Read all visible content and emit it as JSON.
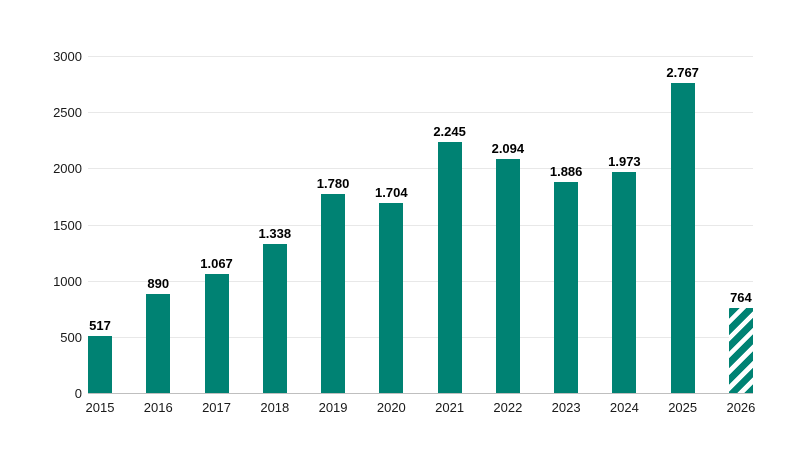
{
  "colors": {
    "bar": "#008273",
    "gridline": "#e8e8e8",
    "axis_line": "#bfbfbf",
    "text": "#1a1a1a",
    "background": "#ffffff"
  },
  "chart_data": {
    "type": "bar",
    "title": "",
    "xlabel": "",
    "ylabel": "",
    "legend": "none",
    "grid": "horizontal",
    "categories": [
      "2015",
      "2016",
      "2017",
      "2018",
      "2019",
      "2020",
      "2021",
      "2022",
      "2023",
      "2024",
      "2025",
      "2026"
    ],
    "values": [
      517,
      890,
      1067,
      1338,
      1780,
      1704,
      2245,
      2094,
      1886,
      1973,
      2767,
      764
    ],
    "value_labels": [
      "517",
      "890",
      "1.067",
      "1.338",
      "1.780",
      "1.704",
      "2.245",
      "2.094",
      "1.886",
      "1.973",
      "2.767",
      "764"
    ],
    "yticks": [
      0,
      500,
      1000,
      1500,
      2000,
      2500,
      3000
    ],
    "ytick_labels": [
      "0",
      "500",
      "1000",
      "1500",
      "2000",
      "2500",
      "3000"
    ],
    "ylim": [
      0,
      3000
    ],
    "bar_color": "#008273",
    "hatched_indices": [
      11
    ],
    "hatch_style": "white diagonal stripes bottom-left to top-right"
  }
}
